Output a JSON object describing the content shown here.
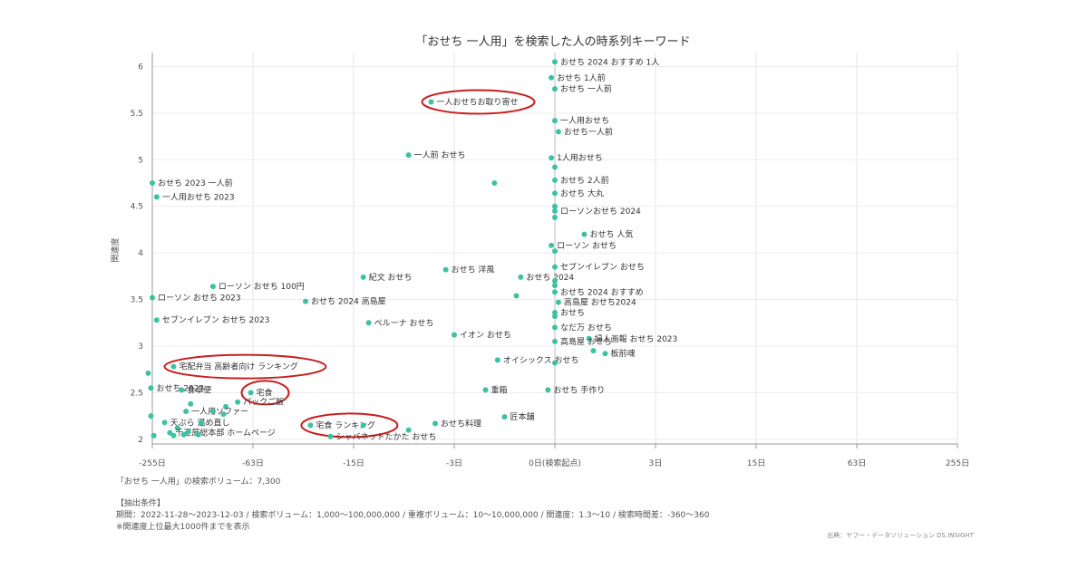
{
  "chart_data": {
    "type": "scatter",
    "title": "「おせち 一人用」を検索した人の時系列キーワード",
    "ylabel": "関連度",
    "xlabel": "",
    "x_ticks": [
      "-255日",
      "-63日",
      "-15日",
      "-3日",
      "0日(検索起点)",
      "3日",
      "15日",
      "63日",
      "255日"
    ],
    "y_ticks": [
      "2",
      "2.5",
      "3",
      "3.5",
      "4",
      "4.5",
      "5",
      "5.5",
      "6"
    ],
    "ylim": [
      1.95,
      6.15
    ],
    "grid": true,
    "color": "#3cc2a2",
    "highlight_color": "#c81e1e",
    "points": [
      {
        "x": 0,
        "y": 6.05,
        "label": "おせち 2024 おすすめ 1人"
      },
      {
        "x": -0.05,
        "y": 5.88,
        "label": "おせち 1人前"
      },
      {
        "x": 0,
        "y": 5.76,
        "label": "おせち 一人前"
      },
      {
        "x": -4.5,
        "y": 5.62,
        "label": "一人おせちお取り寄せ",
        "highlight": true
      },
      {
        "x": 0,
        "y": 5.42,
        "label": "一人用おせち"
      },
      {
        "x": 0.05,
        "y": 5.3,
        "label": "おせち一人前"
      },
      {
        "x": -6.5,
        "y": 5.05,
        "label": "一人前 おせち"
      },
      {
        "x": -0.05,
        "y": 5.02,
        "label": "1人用おせち"
      },
      {
        "x": 0,
        "y": 4.92,
        "label": ""
      },
      {
        "x": -1.3,
        "y": 4.75,
        "label": ""
      },
      {
        "x": 0,
        "y": 4.78,
        "label": "おせち 2人前"
      },
      {
        "x": -255,
        "y": 4.75,
        "label": "おせち 2023 一人前"
      },
      {
        "x": 0,
        "y": 4.64,
        "label": "おせち 大丸"
      },
      {
        "x": -240,
        "y": 4.6,
        "label": "一人用おせち 2023"
      },
      {
        "x": 0,
        "y": 4.5,
        "label": ""
      },
      {
        "x": 0,
        "y": 4.45,
        "label": "ローソンおせち 2024"
      },
      {
        "x": 0,
        "y": 4.38,
        "label": ""
      },
      {
        "x": 0.5,
        "y": 4.2,
        "label": "おせち 人気"
      },
      {
        "x": -0.05,
        "y": 4.08,
        "label": "ローソン おせち"
      },
      {
        "x": 0,
        "y": 4.02,
        "label": ""
      },
      {
        "x": 0,
        "y": 3.85,
        "label": "セブンイレブン おせち"
      },
      {
        "x": -3.5,
        "y": 3.82,
        "label": "おせち 洋風"
      },
      {
        "x": -13,
        "y": 3.74,
        "label": "紀文 おせち"
      },
      {
        "x": -0.6,
        "y": 3.74,
        "label": "おせち 2024"
      },
      {
        "x": 0,
        "y": 3.7,
        "label": ""
      },
      {
        "x": 0,
        "y": 3.65,
        "label": ""
      },
      {
        "x": -110,
        "y": 3.64,
        "label": "ローソン おせち 100円"
      },
      {
        "x": 0,
        "y": 3.58,
        "label": "おせち 2024 おすすめ"
      },
      {
        "x": -0.7,
        "y": 3.54,
        "label": ""
      },
      {
        "x": -255,
        "y": 3.52,
        "label": "ローソン おせち 2023"
      },
      {
        "x": -30,
        "y": 3.48,
        "label": "おせち 2024 高島屋"
      },
      {
        "x": 0.05,
        "y": 3.47,
        "label": "高島屋 おせち2024"
      },
      {
        "x": 0,
        "y": 3.36,
        "label": "おせち"
      },
      {
        "x": 0,
        "y": 3.32,
        "label": ""
      },
      {
        "x": -240,
        "y": 3.28,
        "label": "セブンイレブン おせち 2023"
      },
      {
        "x": -12,
        "y": 3.25,
        "label": "ペルーナ おせち"
      },
      {
        "x": 0,
        "y": 3.2,
        "label": "なだ万 おせち"
      },
      {
        "x": -3,
        "y": 3.12,
        "label": "イオン おせち"
      },
      {
        "x": 0.6,
        "y": 3.08,
        "label": "婦人画報 おせち 2023"
      },
      {
        "x": 0,
        "y": 3.05,
        "label": "高島屋 おせち"
      },
      {
        "x": 0.7,
        "y": 2.95,
        "label": ""
      },
      {
        "x": 1,
        "y": 2.92,
        "label": "板前魂"
      },
      {
        "x": -1.2,
        "y": 2.85,
        "label": "オイシックス おせち"
      },
      {
        "x": 0,
        "y": 2.82,
        "label": ""
      },
      {
        "x": -190,
        "y": 2.78,
        "label": "宅配弁当 高齢者向け ランキング",
        "highlight": true
      },
      {
        "x": -270,
        "y": 2.71,
        "label": ""
      },
      {
        "x": -260,
        "y": 2.55,
        "label": "おせち 2023"
      },
      {
        "x": -170,
        "y": 2.53,
        "label": "食卓便"
      },
      {
        "x": -1.6,
        "y": 2.53,
        "label": "重箱"
      },
      {
        "x": -0.1,
        "y": 2.53,
        "label": "おせち 手作り"
      },
      {
        "x": -65,
        "y": 2.5,
        "label": "宅食",
        "highlight": true
      },
      {
        "x": -78,
        "y": 2.4,
        "label": "パックご飯"
      },
      {
        "x": -150,
        "y": 2.38,
        "label": ""
      },
      {
        "x": -92,
        "y": 2.35,
        "label": ""
      },
      {
        "x": -160,
        "y": 2.3,
        "label": "一人用ソファー"
      },
      {
        "x": -110,
        "y": 2.3,
        "label": ""
      },
      {
        "x": -1,
        "y": 2.24,
        "label": "匠本舗"
      },
      {
        "x": -260,
        "y": 2.25,
        "label": ""
      },
      {
        "x": -95,
        "y": 2.27,
        "label": ""
      },
      {
        "x": -215,
        "y": 2.18,
        "label": "天ぷら 温め直し"
      },
      {
        "x": -4.2,
        "y": 2.17,
        "label": "おせち料理"
      },
      {
        "x": -28,
        "y": 2.15,
        "label": "宅食 ランキング",
        "highlight": true
      },
      {
        "x": -13,
        "y": 2.15,
        "label": ""
      },
      {
        "x": -130,
        "y": 2.18,
        "label": ""
      },
      {
        "x": -180,
        "y": 2.12,
        "label": ""
      },
      {
        "x": -200,
        "y": 2.07,
        "label": "千疋屋総本部 ホームページ"
      },
      {
        "x": -6.5,
        "y": 2.1,
        "label": ""
      },
      {
        "x": -155,
        "y": 2.08,
        "label": ""
      },
      {
        "x": -165,
        "y": 2.05,
        "label": ""
      },
      {
        "x": -250,
        "y": 2.04,
        "label": ""
      },
      {
        "x": -21,
        "y": 2.03,
        "label": "シャバネットたかた おせち"
      },
      {
        "x": -135,
        "y": 2.05,
        "label": ""
      },
      {
        "x": -190,
        "y": 2.04,
        "label": ""
      }
    ]
  },
  "footer": {
    "volume": "「おせち 一人用」の検索ボリューム：7,300",
    "conditions_heading": "【抽出条件】",
    "conditions": "期間：2022-11-28～2023-12-03 / 検索ボリューム：1,000～100,000,000 / 重複ボリューム：10～10,000,000 / 関連度：1.3～10 / 検索時間差：-360～360",
    "note": "※関連度上位最大1000件までを表示",
    "credit": "出典：ヤフー・データソリューション DS.INSIGHT"
  }
}
